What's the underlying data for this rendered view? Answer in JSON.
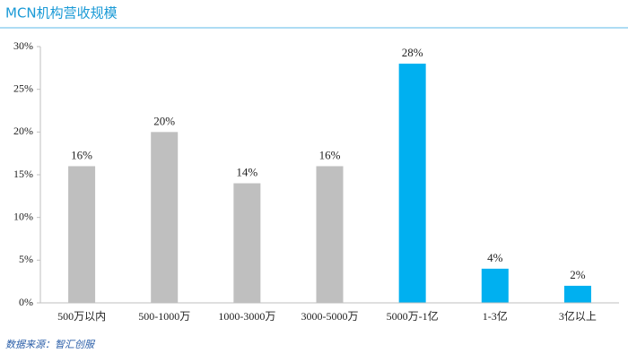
{
  "chart_data": {
    "type": "bar",
    "title": "MCN机构营收规模",
    "categories": [
      "500万以内",
      "500-1000万",
      "1000-3000万",
      "3000-5000万",
      "5000万-1亿",
      "1-3亿",
      "3亿以上"
    ],
    "values": [
      16,
      20,
      14,
      16,
      28,
      4,
      2
    ],
    "value_labels": [
      "16%",
      "20%",
      "14%",
      "16%",
      "28%",
      "4%",
      "2%"
    ],
    "colors": [
      "#bfbfbf",
      "#bfbfbf",
      "#bfbfbf",
      "#bfbfbf",
      "#00b0f0",
      "#00b0f0",
      "#00b0f0"
    ],
    "ylim": [
      0,
      30
    ],
    "yticks": [
      {
        "value": 0,
        "label": "0%"
      },
      {
        "value": 5,
        "label": "5%"
      },
      {
        "value": 10,
        "label": "10%"
      },
      {
        "value": 15,
        "label": "15%"
      },
      {
        "value": 20,
        "label": "20%"
      },
      {
        "value": 25,
        "label": "25%"
      },
      {
        "value": 30,
        "label": "30%"
      }
    ],
    "grid": false,
    "source": "数据来源：智汇创服"
  }
}
